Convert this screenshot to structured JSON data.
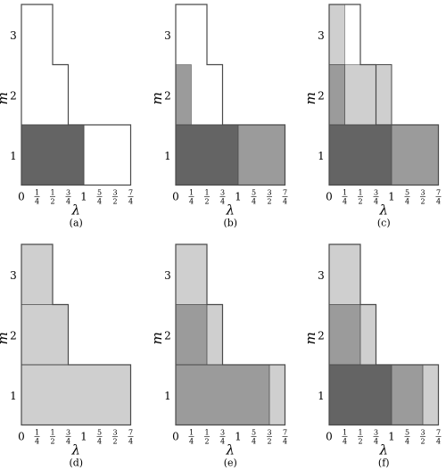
{
  "axes": {
    "x_label": "λ",
    "y_label": "m",
    "x_ticks": [
      "0",
      "1/4",
      "1/2",
      "3/4",
      "1",
      "5/4",
      "3/2",
      "7/4"
    ],
    "y_ticks": [
      "1",
      "2",
      "3"
    ]
  },
  "colors": {
    "dark": "#646464",
    "medium": "#9b9b9b",
    "light": "#cfcfcf",
    "outline": "#4a4a4a"
  },
  "outline_staircase": [
    {
      "m": 3,
      "lambda_max": 0.5
    },
    {
      "m": 2,
      "lambda_max": 0.75
    },
    {
      "m": 1,
      "lambda_max": 1.75
    }
  ],
  "panels": [
    {
      "label": "(a)",
      "white_cells": [
        {
          "m": 1,
          "from": 1,
          "to": 1.75
        }
      ],
      "fills": [
        {
          "m": 1,
          "from": 0,
          "to": 1,
          "shade": "dark"
        }
      ]
    },
    {
      "label": "(b)",
      "fills": [
        {
          "m": 1,
          "from": 0,
          "to": 1,
          "shade": "dark"
        },
        {
          "m": 1,
          "from": 1,
          "to": 1.75,
          "shade": "medium"
        },
        {
          "m": 2,
          "from": 0,
          "to": 0.25,
          "shade": "medium"
        }
      ]
    },
    {
      "label": "(c)",
      "fills": [
        {
          "m": 1,
          "from": 0,
          "to": 1,
          "shade": "dark"
        },
        {
          "m": 1,
          "from": 1,
          "to": 1.75,
          "shade": "medium"
        },
        {
          "m": 2,
          "from": 0,
          "to": 0.25,
          "shade": "medium"
        },
        {
          "m": 2,
          "from": 0.25,
          "to": 1,
          "shade": "light"
        },
        {
          "m": 3,
          "from": 0,
          "to": 0.25,
          "shade": "light"
        }
      ],
      "extra_outline": {
        "m": 2,
        "from": 0.75,
        "to": 1
      }
    },
    {
      "label": "(d)",
      "fills": [
        {
          "m": 1,
          "from": 0,
          "to": 1.75,
          "shade": "light"
        },
        {
          "m": 2,
          "from": 0,
          "to": 0.75,
          "shade": "light"
        },
        {
          "m": 3,
          "from": 0,
          "to": 0.5,
          "shade": "light"
        }
      ]
    },
    {
      "label": "(e)",
      "fills": [
        {
          "m": 1,
          "from": 0,
          "to": 1.5,
          "shade": "medium"
        },
        {
          "m": 1,
          "from": 1.5,
          "to": 1.75,
          "shade": "light"
        },
        {
          "m": 2,
          "from": 0,
          "to": 0.5,
          "shade": "medium"
        },
        {
          "m": 2,
          "from": 0.5,
          "to": 0.75,
          "shade": "light"
        },
        {
          "m": 3,
          "from": 0,
          "to": 0.5,
          "shade": "light"
        }
      ]
    },
    {
      "label": "(f)",
      "fills": [
        {
          "m": 1,
          "from": 0,
          "to": 1,
          "shade": "dark"
        },
        {
          "m": 1,
          "from": 1,
          "to": 1.5,
          "shade": "medium"
        },
        {
          "m": 1,
          "from": 1.5,
          "to": 1.75,
          "shade": "light"
        },
        {
          "m": 2,
          "from": 0,
          "to": 0.5,
          "shade": "medium"
        },
        {
          "m": 2,
          "from": 0.5,
          "to": 0.75,
          "shade": "light"
        },
        {
          "m": 3,
          "from": 0,
          "to": 0.5,
          "shade": "light"
        }
      ]
    }
  ]
}
